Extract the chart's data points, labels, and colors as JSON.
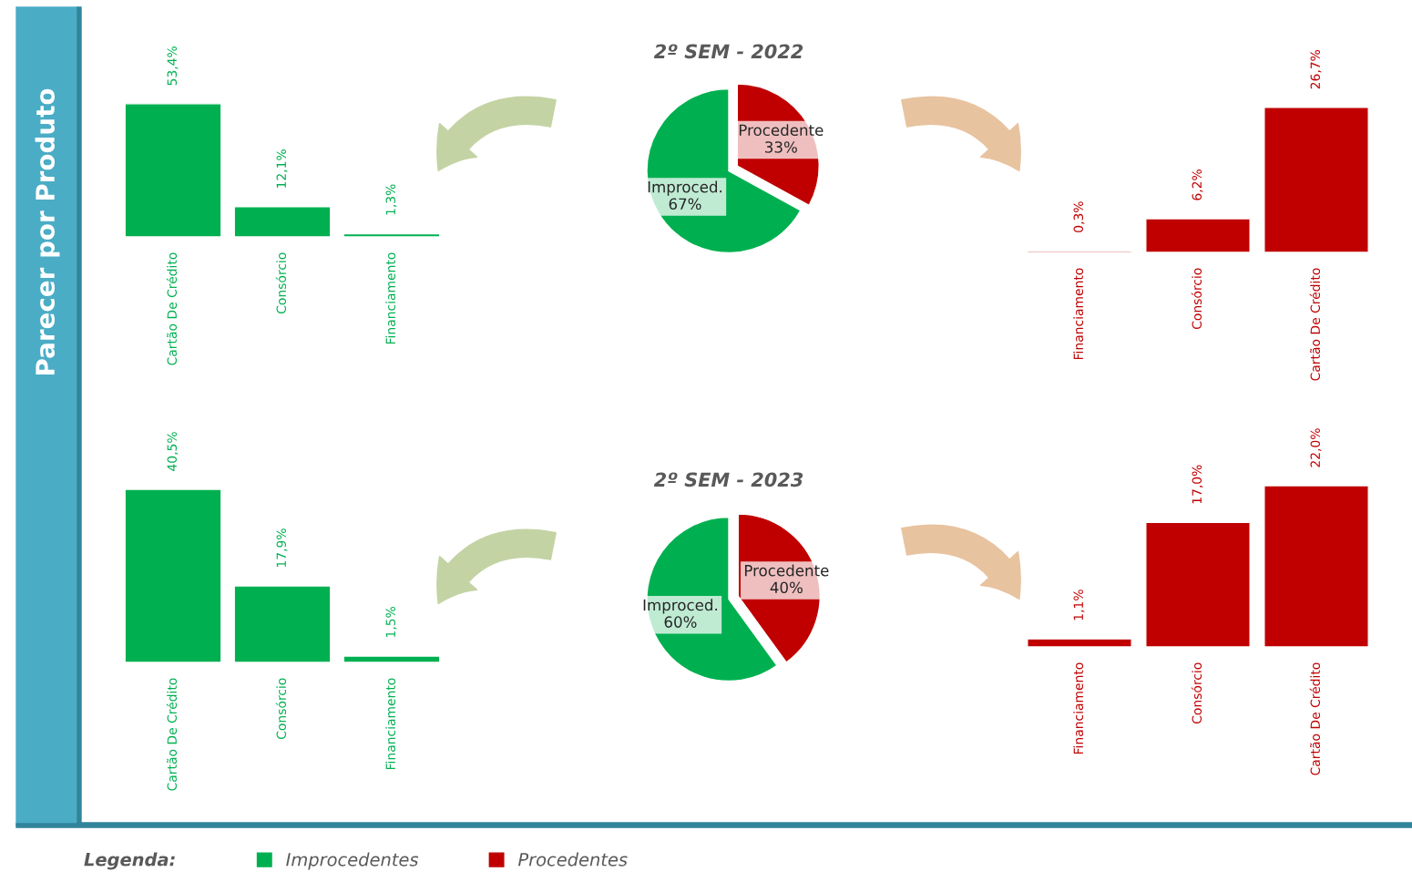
{
  "chart_data": [
    {
      "type": "bar",
      "title": "Parecer por Produto",
      "categories": [
        "Cartão De Crédito",
        "Consórcio",
        "Financiamento"
      ],
      "series": [
        {
          "name": "Improcedentes",
          "color": "#00b050",
          "values": [
            53.4,
            12.1,
            1.3
          ],
          "value_labels": [
            "53,4%",
            "12,1%",
            "1,3%"
          ]
        }
      ],
      "legend": "bottom",
      "legend_title": "Legenda:"
    },
    {
      "type": "pie",
      "title": "2º SEM - 2022",
      "categories": [
        "Improced.",
        "Procedente"
      ],
      "values": [
        67,
        33
      ],
      "colors": [
        "#00b050",
        "#c00000"
      ],
      "value_labels": [
        "67%",
        "33%"
      ]
    },
    {
      "type": "bar",
      "categories": [
        "Financiamento",
        "Consórcio",
        "Cartão De Crédito"
      ],
      "series": [
        {
          "name": "Procedentes",
          "color": "#c00000",
          "values": [
            0.3,
            6.2,
            26.7
          ],
          "value_labels": [
            "0,3%",
            "6,2%",
            "26,7%"
          ]
        }
      ],
      "legend": "bottom"
    },
    {
      "type": "bar",
      "categories": [
        "Cartão De Crédito",
        "Consórcio",
        "Financiamento"
      ],
      "series": [
        {
          "color": "#00b050",
          "values": [
            40.5,
            17.9,
            1.5
          ],
          "value_labels": [
            "40,5%",
            "17,9%",
            "1,5%"
          ]
        }
      ]
    },
    {
      "type": "pie",
      "title": "2º SEM - 2023",
      "categories": [
        "Improced.",
        "Procedente"
      ],
      "values": [
        60,
        40
      ],
      "colors": [
        "#00b050",
        "#c00000"
      ],
      "value_labels": [
        "60%",
        "40%"
      ]
    },
    {
      "type": "bar",
      "categories": [
        "Financiamento",
        "Consórcio",
        "Cartão De Crédito"
      ],
      "series": [
        {
          "color": "#c00000",
          "values": [
            1.1,
            17.0,
            22.0
          ],
          "value_labels": [
            "1,1%",
            "17,0%",
            "22,0%"
          ]
        }
      ]
    }
  ]
}
